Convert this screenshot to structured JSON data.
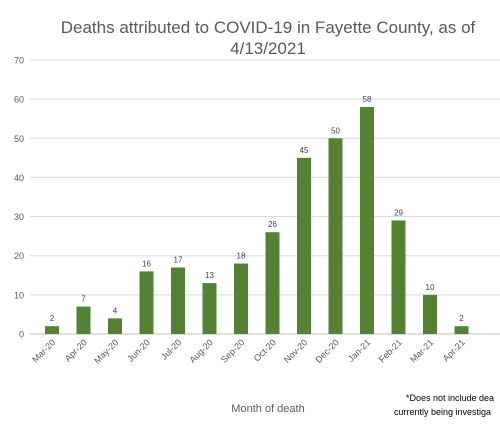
{
  "chart_data": {
    "type": "bar",
    "title_line1": "Deaths attributed to COVID-19 in Fayette County, as of",
    "title_line2": "4/13/2021",
    "xlabel": "Month of death",
    "ylabel": "",
    "ylim": [
      0,
      70
    ],
    "yticks": [
      "0",
      "10",
      "20",
      "30",
      "40",
      "50",
      "60",
      "70"
    ],
    "grid": true,
    "categories": [
      "Mar-20",
      "Apr-20",
      "May-20",
      "Jun-20",
      "Jul-20",
      "Aug-20",
      "Sep-20",
      "Oct-20",
      "Nov-20",
      "Dec-20",
      "Jan-21",
      "Feb-21",
      "Mar-21",
      "Apr-21"
    ],
    "values": [
      2,
      7,
      4,
      16,
      17,
      13,
      18,
      26,
      45,
      50,
      58,
      29,
      10,
      2
    ],
    "data_labels": [
      "2",
      "7",
      "4",
      "16",
      "17",
      "13",
      "18",
      "26",
      "45",
      "50",
      "58",
      "29",
      "10",
      "2"
    ],
    "bar_color": "#548235",
    "note_line1": "*Does not include dea",
    "note_line2": "currently being investiga"
  }
}
